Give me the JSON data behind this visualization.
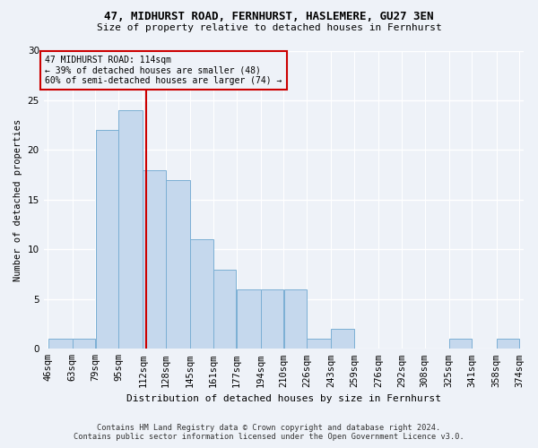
{
  "title1": "47, MIDHURST ROAD, FERNHURST, HASLEMERE, GU27 3EN",
  "title2": "Size of property relative to detached houses in Fernhurst",
  "xlabel": "Distribution of detached houses by size in Fernhurst",
  "ylabel": "Number of detached properties",
  "bin_labels": [
    "46sqm",
    "63sqm",
    "79sqm",
    "95sqm",
    "112sqm",
    "128sqm",
    "145sqm",
    "161sqm",
    "177sqm",
    "194sqm",
    "210sqm",
    "226sqm",
    "243sqm",
    "259sqm",
    "276sqm",
    "292sqm",
    "308sqm",
    "325sqm",
    "341sqm",
    "358sqm",
    "374sqm"
  ],
  "bin_edges": [
    46,
    63,
    79,
    95,
    112,
    128,
    145,
    161,
    177,
    194,
    210,
    226,
    243,
    259,
    276,
    292,
    308,
    325,
    341,
    358,
    374
  ],
  "bar_heights": [
    1,
    1,
    22,
    24,
    18,
    17,
    11,
    8,
    6,
    6,
    6,
    1,
    2,
    0,
    0,
    0,
    0,
    1,
    0,
    1,
    0
  ],
  "bar_color": "#c5d8ed",
  "bar_edge_color": "#7bafd4",
  "property_size": 114,
  "vline_color": "#cc0000",
  "annotation_line1": "47 MIDHURST ROAD: 114sqm",
  "annotation_line2": "← 39% of detached houses are smaller (48)",
  "annotation_line3": "60% of semi-detached houses are larger (74) →",
  "annotation_box_color": "#cc0000",
  "footer1": "Contains HM Land Registry data © Crown copyright and database right 2024.",
  "footer2": "Contains public sector information licensed under the Open Government Licence v3.0.",
  "ylim": [
    0,
    30
  ],
  "bg_color": "#eef2f8"
}
